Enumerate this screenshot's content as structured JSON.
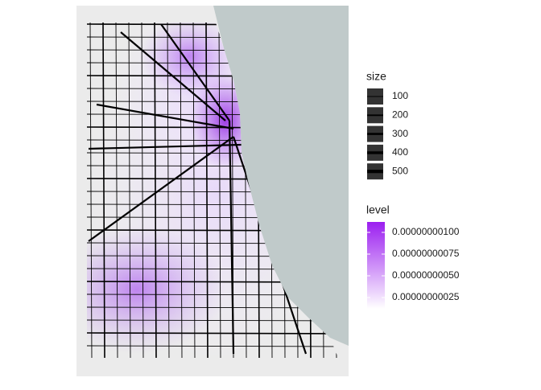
{
  "legends": {
    "size": {
      "title": "size",
      "items": [
        "100",
        "200",
        "300",
        "400",
        "500"
      ]
    },
    "level": {
      "title": "level",
      "items": [
        "0.00000000100",
        "0.00000000075",
        "0.00000000050",
        "0.00000000025"
      ]
    }
  }
}
